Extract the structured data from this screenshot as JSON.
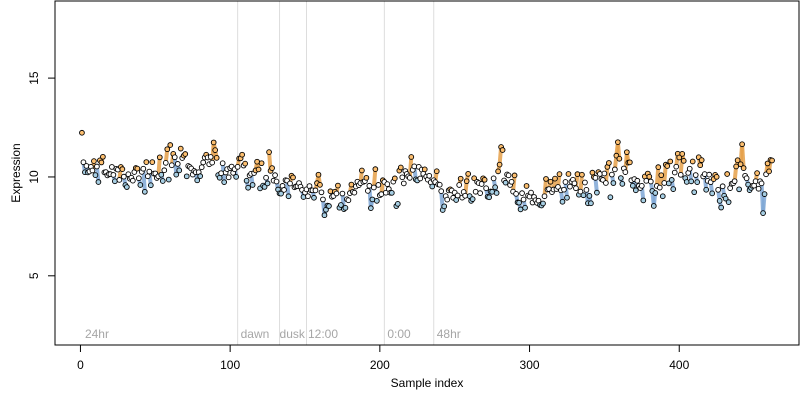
{
  "chart_data": {
    "type": "scatter",
    "title": "",
    "xlabel": "Sample index",
    "ylabel": "Expression",
    "xlim": [
      -17,
      480
    ],
    "ylim": [
      1.5,
      18.9
    ],
    "x_ticks": [
      0,
      100,
      200,
      300,
      400
    ],
    "y_ticks": [
      5,
      10,
      15
    ],
    "grid": false,
    "legend": "none",
    "colors": {
      "point_border": "#000000",
      "point_default": "#ffffff",
      "point_high": "#fdbf6f",
      "point_low": "#a6cee3",
      "highlight_high": "#e6a04a",
      "highlight_low": "#7fa8d6",
      "period_line": "#dddddd",
      "period_label": "#a6a6a6"
    },
    "period_boundaries": [
      105,
      133,
      151,
      203,
      236
    ],
    "period_labels": [
      {
        "text": "24hr",
        "x": 3
      },
      {
        "text": "dawn",
        "x": 107
      },
      {
        "text": "dusk",
        "x": 133
      },
      {
        "text": "12:00",
        "x": 152
      },
      {
        "text": "0:00",
        "x": 205
      },
      {
        "text": "48hr",
        "x": 238
      }
    ],
    "series": [
      {
        "n_points": 462,
        "baseline": [
          [
            0,
            10.6
          ],
          [
            30,
            10.1
          ],
          [
            50,
            10.0
          ],
          [
            65,
            10.3
          ],
          [
            85,
            10.5
          ],
          [
            100,
            10.3
          ],
          [
            120,
            10.0
          ],
          [
            135,
            9.6
          ],
          [
            150,
            9.4
          ],
          [
            160,
            9.0
          ],
          [
            170,
            9.2
          ],
          [
            185,
            9.5
          ],
          [
            200,
            9.4
          ],
          [
            215,
            9.8
          ],
          [
            230,
            10.1
          ],
          [
            240,
            9.3
          ],
          [
            260,
            9.4
          ],
          [
            280,
            9.9
          ],
          [
            295,
            9.4
          ],
          [
            310,
            9.3
          ],
          [
            330,
            9.5
          ],
          [
            350,
            10.0
          ],
          [
            370,
            9.8
          ],
          [
            400,
            10.1
          ],
          [
            430,
            9.9
          ],
          [
            462,
            10.0
          ]
        ],
        "noise_sd": 0.42,
        "spikes": [
          [
            13,
            0.7
          ],
          [
            36,
            0.5
          ],
          [
            57,
            0.8
          ],
          [
            66,
            1.0
          ],
          [
            82,
            0.8
          ],
          [
            88,
            1.0
          ],
          [
            190,
            0.6
          ],
          [
            220,
            0.6
          ],
          [
            280,
            1.2
          ],
          [
            326,
            0.6
          ],
          [
            358,
            1.6
          ],
          [
            364,
            0.8
          ],
          [
            398,
            0.9
          ],
          [
            414,
            0.9
          ],
          [
            440,
            0.6
          ],
          [
            460,
            0.7
          ]
        ],
        "dips": [
          [
            163,
            -1.3
          ],
          [
            176,
            -0.9
          ],
          [
            192,
            -0.8
          ],
          [
            210,
            -0.8
          ],
          [
            242,
            -0.4
          ],
          [
            272,
            -0.7
          ],
          [
            292,
            -1.1
          ],
          [
            306,
            -1.0
          ],
          [
            338,
            -0.9
          ],
          [
            382,
            -0.6
          ],
          [
            432,
            -0.9
          ],
          [
            455,
            -0.8
          ]
        ]
      }
    ]
  }
}
